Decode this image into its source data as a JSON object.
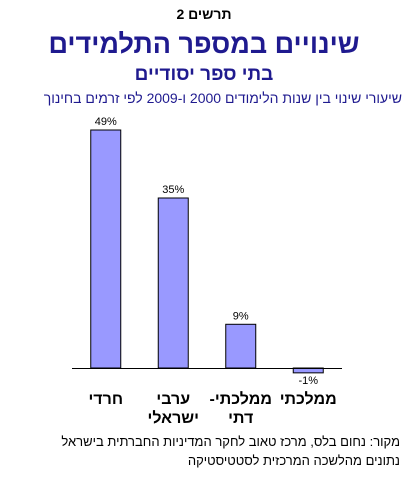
{
  "figure_label": "תרשים 2",
  "title": "שינויים במספר התלמידים",
  "subtitle": "בתי ספר יסודיים",
  "description": "שיעורי שינוי בין שנות הלימודים 2000 ו-2009 לפי זרמים בחינוך",
  "source_lines": [
    "מקור: נחום בלס, מרכז טאוב לחקר המדיניות החברתית בישראל",
    "נתונים מהלשכה המרכזית לסטטיסטיקה"
  ],
  "colors": {
    "bar": "#9999ff",
    "bar_stroke": "#000000",
    "title": "#1f1a8f"
  },
  "chart_data": {
    "type": "bar",
    "categories": [
      [
        "חרדי"
      ],
      [
        "ערבי",
        "ישראלי"
      ],
      [
        "ממלכתי-",
        "דתי"
      ],
      [
        "ממלכתי"
      ]
    ],
    "values": [
      49,
      35,
      9,
      -1
    ],
    "data_labels": [
      "49%",
      "35%",
      "9%",
      "-1%"
    ],
    "ylim": [
      -2,
      50
    ],
    "grid": false,
    "legend": "none"
  }
}
